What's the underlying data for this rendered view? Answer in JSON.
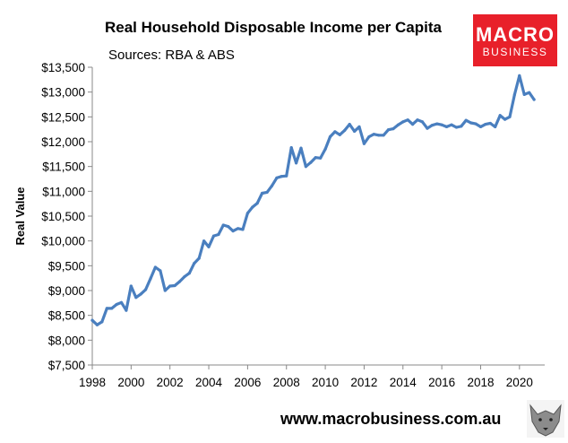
{
  "chart_data": {
    "type": "line",
    "title": "Real Household Disposable Income per Capita",
    "subtitle": "Sources: RBA & ABS",
    "ylabel": "Real Value",
    "xlabel": "",
    "xlim": [
      1998,
      2021.3
    ],
    "ylim": [
      7500,
      13500
    ],
    "y_ticks": [
      7500,
      8000,
      8500,
      9000,
      9500,
      10000,
      10500,
      11000,
      11500,
      12000,
      12500,
      13000,
      13500
    ],
    "y_tick_labels": [
      "$7,500",
      "$8,000",
      "$8,500",
      "$9,000",
      "$9,500",
      "$10,000",
      "$10,500",
      "$11,000",
      "$11,500",
      "$12,000",
      "$12,500",
      "$13,000",
      "$13,500"
    ],
    "x_ticks": [
      1998,
      2000,
      2002,
      2004,
      2006,
      2008,
      2010,
      2012,
      2014,
      2016,
      2018,
      2020
    ],
    "x_tick_labels": [
      "1998",
      "2000",
      "2002",
      "2004",
      "2006",
      "2008",
      "2010",
      "2012",
      "2014",
      "2016",
      "2018",
      "2020"
    ],
    "grid": false,
    "legend": "none",
    "series_color": "#4a7fbf",
    "x": [
      1998.0,
      1998.25,
      1998.5,
      1998.75,
      1999.0,
      1999.25,
      1999.5,
      1999.75,
      2000.0,
      2000.25,
      2000.5,
      2000.75,
      2001.0,
      2001.25,
      2001.5,
      2001.75,
      2002.0,
      2002.25,
      2002.5,
      2002.75,
      2003.0,
      2003.25,
      2003.5,
      2003.75,
      2004.0,
      2004.25,
      2004.5,
      2004.75,
      2005.0,
      2005.25,
      2005.5,
      2005.75,
      2006.0,
      2006.25,
      2006.5,
      2006.75,
      2007.0,
      2007.25,
      2007.5,
      2007.75,
      2008.0,
      2008.25,
      2008.5,
      2008.75,
      2009.0,
      2009.25,
      2009.5,
      2009.75,
      2010.0,
      2010.25,
      2010.5,
      2010.75,
      2011.0,
      2011.25,
      2011.5,
      2011.75,
      2012.0,
      2012.25,
      2012.5,
      2012.75,
      2013.0,
      2013.25,
      2013.5,
      2013.75,
      2014.0,
      2014.25,
      2014.5,
      2014.75,
      2015.0,
      2015.25,
      2015.5,
      2015.75,
      2016.0,
      2016.25,
      2016.5,
      2016.75,
      2017.0,
      2017.25,
      2017.5,
      2017.75,
      2018.0,
      2018.25,
      2018.5,
      2018.75,
      2019.0,
      2019.25,
      2019.5,
      2019.75,
      2020.0,
      2020.25,
      2020.5,
      2020.75
    ],
    "values": [
      8400,
      8310,
      8370,
      8640,
      8640,
      8720,
      8760,
      8600,
      9090,
      8860,
      8930,
      9020,
      9240,
      9470,
      9400,
      9000,
      9090,
      9100,
      9180,
      9280,
      9350,
      9550,
      9650,
      10000,
      9880,
      10100,
      10130,
      10320,
      10290,
      10200,
      10250,
      10230,
      10560,
      10680,
      10760,
      10960,
      10980,
      11110,
      11270,
      11300,
      11310,
      11880,
      11570,
      11870,
      11500,
      11580,
      11680,
      11670,
      11850,
      12100,
      12200,
      12140,
      12230,
      12350,
      12210,
      12300,
      11960,
      12100,
      12150,
      12130,
      12130,
      12240,
      12260,
      12340,
      12400,
      12440,
      12350,
      12440,
      12400,
      12270,
      12330,
      12360,
      12340,
      12300,
      12340,
      12290,
      12310,
      12430,
      12380,
      12360,
      12300,
      12350,
      12370,
      12300,
      12530,
      12450,
      12500,
      12950,
      13330,
      12950,
      12990,
      12850
    ]
  },
  "branding": {
    "logo_line1": "MACRO",
    "logo_line2": "BUSINESS",
    "logo_color": "#e8202a",
    "website": "www.macrobusiness.com.au",
    "mascot_icon": "wolf-head-icon"
  }
}
